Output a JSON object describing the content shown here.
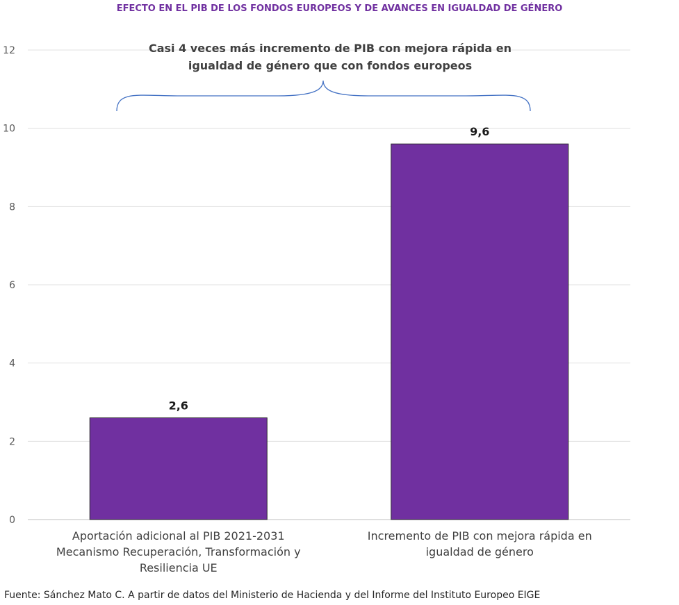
{
  "chart_data": {
    "type": "bar",
    "title": "EFECTO EN EL PIB DE LOS FONDOS EUROPEOS Y DE AVANCES EN IGUALDAD DE GÉNERO",
    "categories": [
      "Aportación adicional al PIB 2021-2031 Mecanismo Recuperación, Transformación y Resiliencia UE",
      "Incremento de PIB con mejora rápida en igualdad de género"
    ],
    "values": [
      2.6,
      9.6
    ],
    "data_labels": [
      "2,6",
      "9,6"
    ],
    "ylim": [
      0,
      12
    ],
    "yticks": [
      0,
      2,
      4,
      6,
      8,
      10,
      12
    ],
    "grid": true,
    "bar_color": "#7030a0",
    "annotation": "Casi 4 veces más incremento de PIB con mejora rápida en igualdad de género que con fondos europeos",
    "source": "Fuente: Sánchez Mato C. A partir de datos del Ministerio de Hacienda y del Informe del Instituto Europeo EIGE"
  }
}
